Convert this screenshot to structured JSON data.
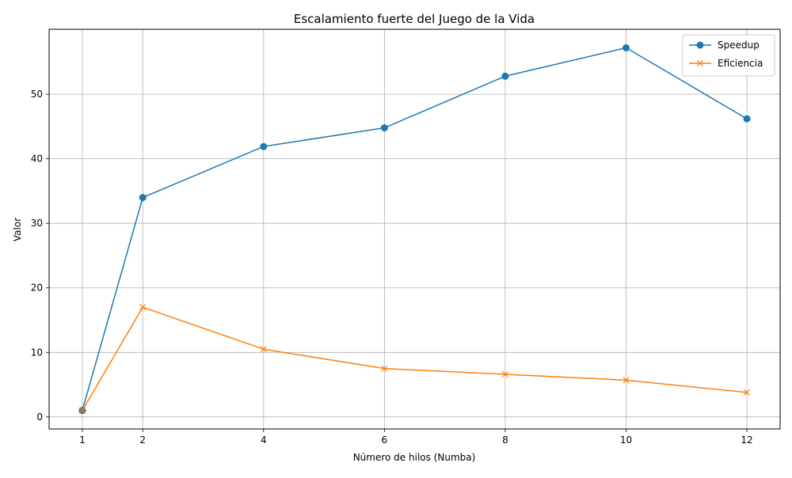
{
  "chart_data": {
    "type": "line",
    "title": "Escalamiento fuerte del Juego de la Vida",
    "xlabel": "Número de hilos (Numba)",
    "ylabel": "Valor",
    "x": [
      1,
      2,
      4,
      6,
      8,
      10,
      12
    ],
    "xticks": [
      1,
      2,
      4,
      6,
      8,
      10,
      12
    ],
    "yticks": [
      0,
      10,
      20,
      30,
      40,
      50
    ],
    "xlim": [
      0.45,
      12.55
    ],
    "ylim": [
      -1.86,
      60.07
    ],
    "grid": true,
    "legend_position": "top-right",
    "series": [
      {
        "name": "Speedup",
        "color": "#1f77b4",
        "marker": "circle",
        "values": [
          1.0,
          34.0,
          41.9,
          44.8,
          52.8,
          57.2,
          46.2
        ]
      },
      {
        "name": "Eficiencia",
        "color": "#ff7f0e",
        "marker": "x",
        "values": [
          1.0,
          17.0,
          10.5,
          7.5,
          6.6,
          5.7,
          3.8
        ]
      }
    ]
  }
}
